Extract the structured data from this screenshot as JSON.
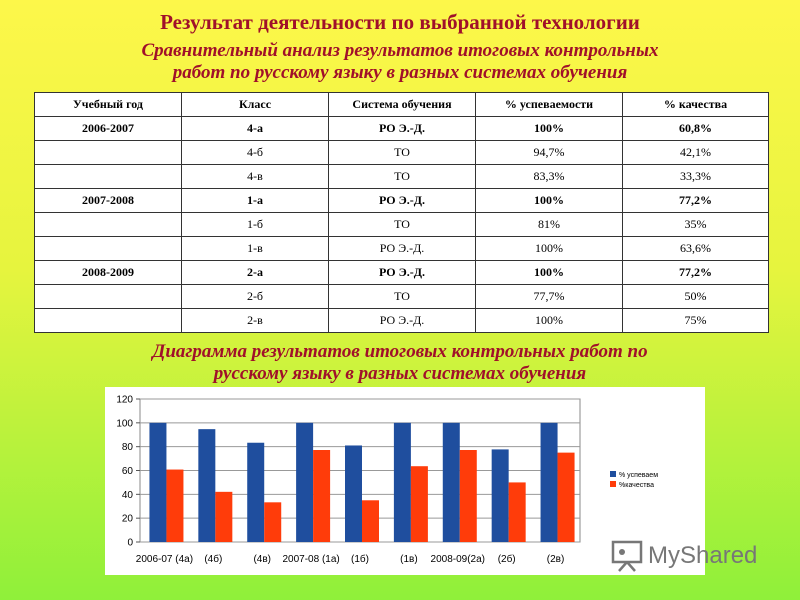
{
  "title": "Результат деятельности по выбранной технологии",
  "subtitle_line1": "Сравнительный анализ результатов итоговых контрольных",
  "subtitle_line2": "работ по русскому языку в разных системах обучения",
  "table": {
    "headers": [
      "Учебный год",
      "Класс",
      "Система обучения",
      "% успеваемости",
      "% качества"
    ],
    "rows": [
      {
        "year": "2006-2007",
        "cls": "4-а",
        "system": "РО Э.-Д.",
        "success": "100%",
        "quality": "60,8%",
        "bold": true
      },
      {
        "year": "",
        "cls": "4-б",
        "system": "ТО",
        "success": "94,7%",
        "quality": "42,1%",
        "bold": false
      },
      {
        "year": "",
        "cls": "4-в",
        "system": "ТО",
        "success": "83,3%",
        "quality": "33,3%",
        "bold": false
      },
      {
        "year": "2007-2008",
        "cls": "1-а",
        "system": "РО Э.-Д.",
        "success": "100%",
        "quality": "77,2%",
        "bold": true
      },
      {
        "year": "",
        "cls": "1-б",
        "system": "ТО",
        "success": "81%",
        "quality": "35%",
        "bold": false
      },
      {
        "year": "",
        "cls": "1-в",
        "system": "РО Э.-Д.",
        "success": "100%",
        "quality": "63,6%",
        "bold": false
      },
      {
        "year": "2008-2009",
        "cls": "2-а",
        "system": "РО Э.-Д.",
        "success": "100%",
        "quality": "77,2%",
        "bold": true
      },
      {
        "year": "",
        "cls": "2-б",
        "system": "ТО",
        "success": "77,7%",
        "quality": "50%",
        "bold": false
      },
      {
        "year": "",
        "cls": "2-в",
        "system": "РО Э.-Д.",
        "success": "100%",
        "quality": "75%",
        "bold": false
      }
    ]
  },
  "chart_title_line1": "Диаграмма  результатов итоговых контрольных работ по",
  "chart_title_line2": "русскому языку в разных системах обучения",
  "chart_data": {
    "type": "bar",
    "categories": [
      "2006-07 (4а)",
      "(4б)",
      "(4в)",
      "2007-08 (1а)",
      "(1б)",
      "(1в)",
      "2008-09(2а)",
      "(2б)",
      "(2в)"
    ],
    "series": [
      {
        "name": "% успеваем",
        "values": [
          100,
          94.7,
          83.3,
          100,
          81,
          100,
          100,
          77.7,
          100
        ],
        "color": "#1f4e9e"
      },
      {
        "name": "%качества",
        "values": [
          60.8,
          42.1,
          33.3,
          77.2,
          35,
          63.6,
          77.2,
          50,
          75
        ],
        "color": "#ff3c0a"
      }
    ],
    "yticks": [
      0,
      20,
      40,
      60,
      80,
      100,
      120
    ],
    "ylim": [
      0,
      120
    ],
    "grid": true,
    "legend": "right"
  },
  "logo_text": "MyShared"
}
